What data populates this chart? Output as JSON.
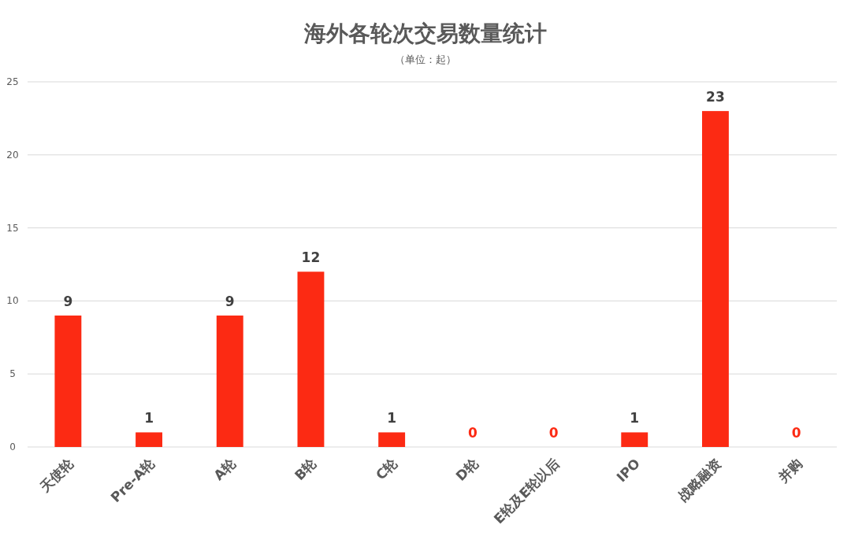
{
  "chart_data": {
    "type": "bar",
    "title": "海外各轮次交易数量统计",
    "subtitle": "（单位：起）",
    "categories": [
      "天使轮",
      "Pre-A轮",
      "A轮",
      "B轮",
      "C轮",
      "D轮",
      "E轮及E轮以后",
      "IPO",
      "战略融资",
      "并购"
    ],
    "values": [
      9,
      1,
      9,
      12,
      1,
      0,
      0,
      1,
      23,
      0
    ],
    "color": "#fc2a13",
    "ylim": [
      0,
      25
    ],
    "yticks": [
      0,
      5,
      10,
      15,
      20,
      25
    ],
    "grid": "y",
    "data_labels": true
  }
}
